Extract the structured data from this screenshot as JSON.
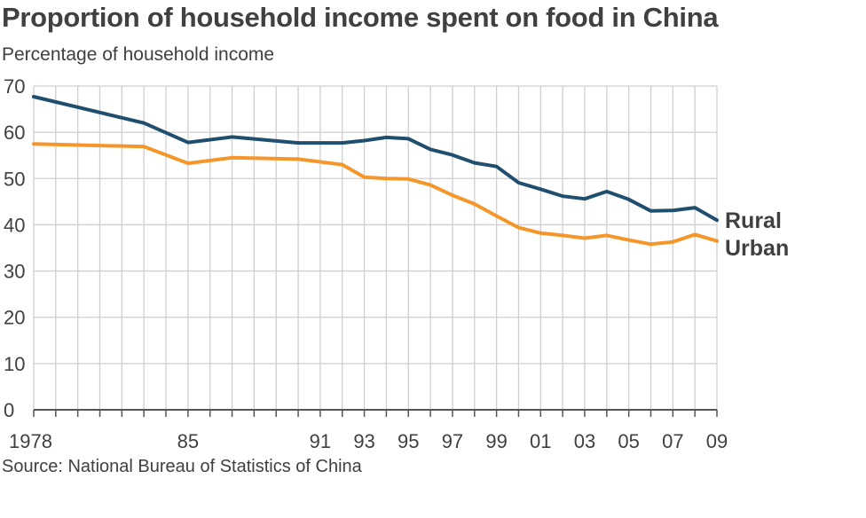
{
  "chart_data": {
    "type": "line",
    "title": "Proportion of household income spent on food in China",
    "subtitle": "Percentage of household income",
    "source": "Source: National Bureau of Statistics of China",
    "x": [
      1978,
      1983,
      1985,
      1987,
      1990,
      1992,
      1993,
      1994,
      1995,
      1996,
      1997,
      1998,
      1999,
      2000,
      2001,
      2002,
      2003,
      2004,
      2005,
      2006,
      2007,
      2008,
      2009
    ],
    "x_tick_values": [
      1978,
      1985,
      1991,
      1993,
      1995,
      1997,
      1999,
      2001,
      2003,
      2005,
      2007,
      2009
    ],
    "x_tick_labels": [
      "1978",
      "85",
      "91",
      "93",
      "95",
      "97",
      "99",
      "01",
      "03",
      "05",
      "07",
      "09"
    ],
    "ylim": [
      0,
      70
    ],
    "y_ticks": [
      0,
      10,
      20,
      30,
      40,
      50,
      60,
      70
    ],
    "grid": true,
    "series": [
      {
        "name": "Rural",
        "color": "#1f4e6e",
        "values": [
          67.7,
          62,
          57.8,
          59,
          57.7,
          57.7,
          58.2,
          58.9,
          58.6,
          56.3,
          55.1,
          53.4,
          52.6,
          49.1,
          47.7,
          46.2,
          45.6,
          47.2,
          45.5,
          43,
          43.1,
          43.7,
          41
        ]
      },
      {
        "name": "Urban",
        "color": "#f5962a",
        "values": [
          57.5,
          56.9,
          53.3,
          54.5,
          54.2,
          53,
          50.3,
          50,
          49.9,
          48.6,
          46.4,
          44.5,
          41.9,
          39.4,
          38.2,
          37.7,
          37.1,
          37.7,
          36.7,
          35.8,
          36.3,
          37.9,
          36.5
        ]
      }
    ]
  }
}
